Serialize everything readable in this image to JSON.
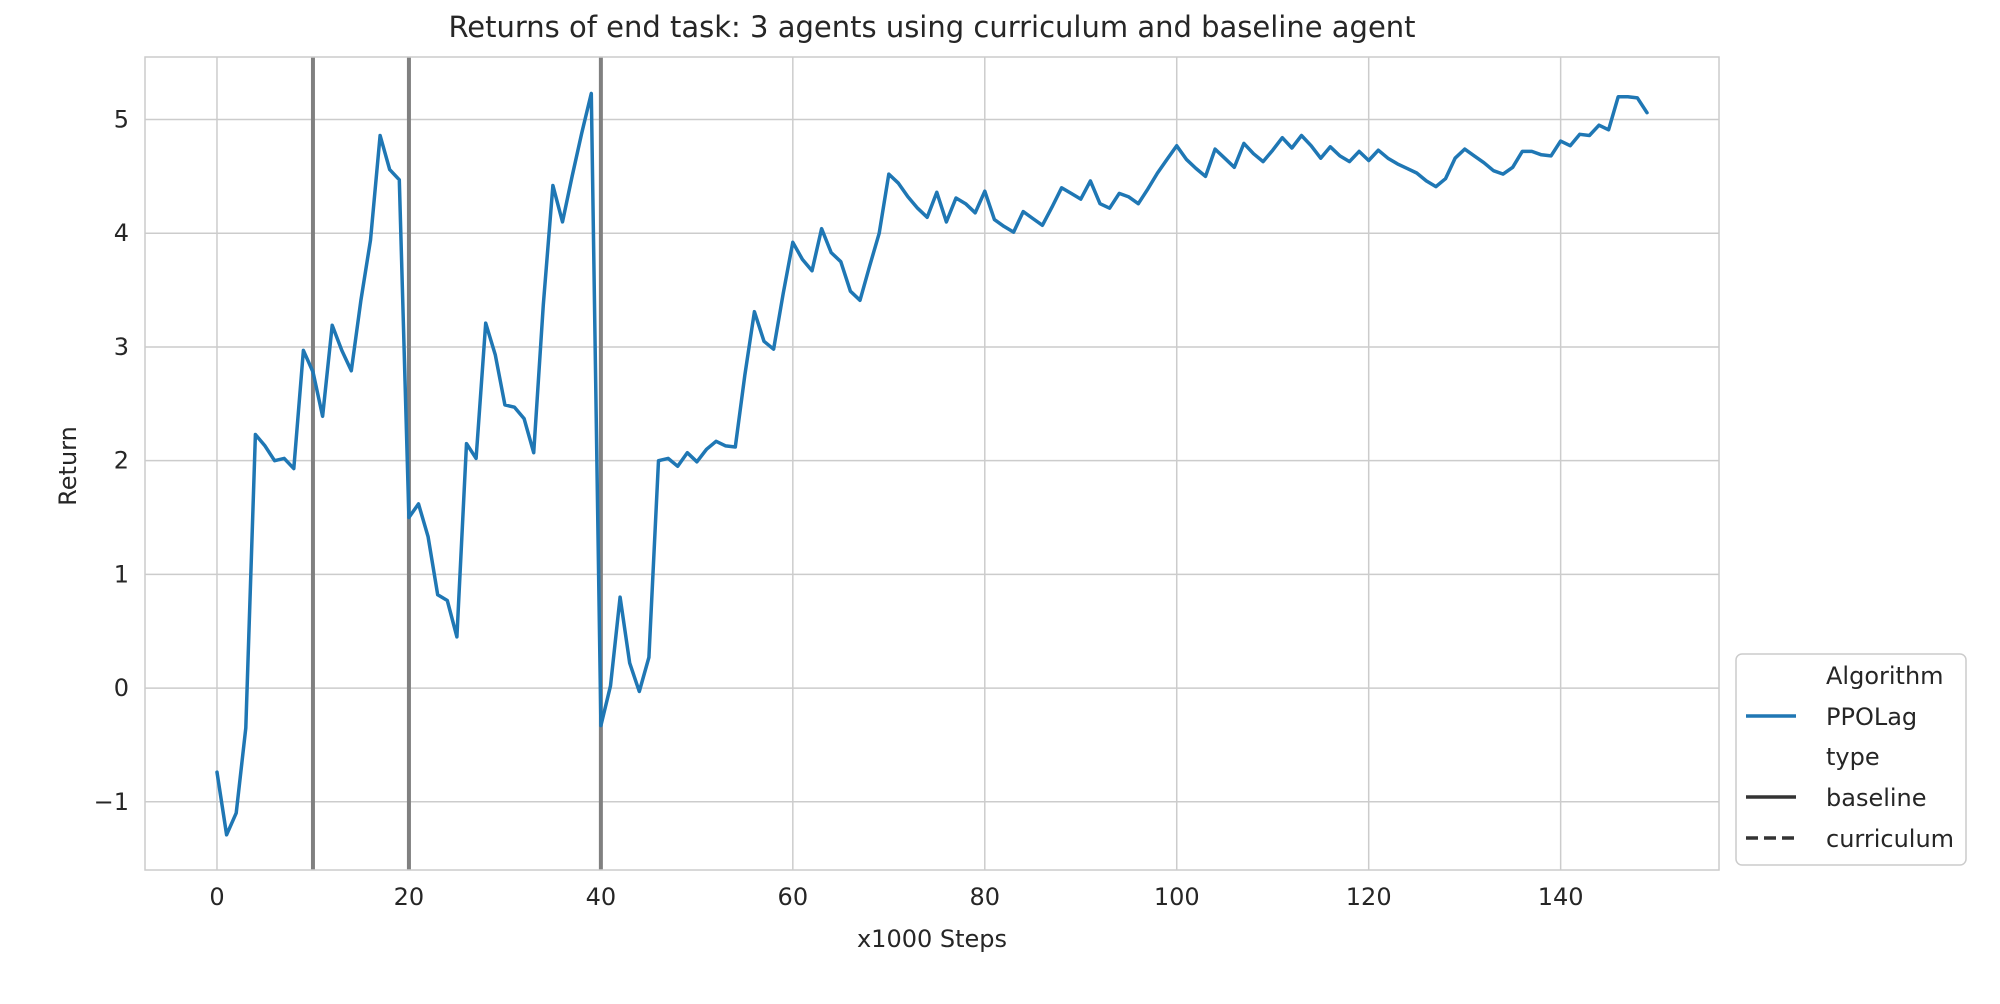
{
  "chart_data": {
    "type": "line",
    "title": "Returns of end task: 3 agents using curriculum and baseline agent",
    "xlabel": "x1000 Steps",
    "ylabel": "Return",
    "xlim": [
      -7.5,
      156.5
    ],
    "ylim": [
      -1.6,
      5.55
    ],
    "xticks": [
      0,
      20,
      40,
      60,
      80,
      100,
      120,
      140
    ],
    "yticks": [
      -1,
      0,
      1,
      2,
      3,
      4,
      5
    ],
    "grid": true,
    "vlines": [
      10,
      20,
      40
    ],
    "legend": {
      "placement": "lower-right-outside",
      "groups": [
        {
          "title": "Algorithm",
          "entries": [
            {
              "label": "PPOLag",
              "color": "#1f77b4",
              "dash": "solid"
            }
          ]
        },
        {
          "title": "type",
          "entries": [
            {
              "label": "baseline",
              "color": "#333333",
              "dash": "solid"
            },
            {
              "label": "curriculum",
              "color": "#333333",
              "dash": "dashed"
            }
          ]
        }
      ]
    },
    "series": [
      {
        "name": "PPOLag",
        "type": "baseline",
        "color": "#1f77b4",
        "x": [
          0,
          1,
          2,
          3,
          4,
          5,
          6,
          7,
          8,
          9,
          10,
          11,
          12,
          13,
          14,
          15,
          16,
          17,
          18,
          19,
          20,
          21,
          22,
          23,
          24,
          25,
          26,
          27,
          28,
          29,
          30,
          31,
          32,
          33,
          34,
          35,
          36,
          37,
          38,
          39,
          40,
          41,
          42,
          43,
          44,
          45,
          46,
          47,
          48,
          49,
          50,
          51,
          52,
          53,
          54,
          55,
          56,
          57,
          58,
          59,
          60,
          61,
          62,
          63,
          64,
          65,
          66,
          67,
          68,
          69,
          70,
          71,
          72,
          73,
          74,
          75,
          76,
          77,
          78,
          79,
          80,
          81,
          82,
          83,
          84,
          85,
          86,
          87,
          88,
          89,
          90,
          91,
          92,
          93,
          94,
          95,
          96,
          97,
          98,
          99,
          100,
          101,
          102,
          103,
          104,
          105,
          106,
          107,
          108,
          109,
          110,
          111,
          112,
          113,
          114,
          115,
          116,
          117,
          118,
          119,
          120,
          121,
          122,
          123,
          124,
          125,
          126,
          127,
          128,
          129,
          130,
          131,
          132,
          133,
          134,
          135,
          136,
          137,
          138,
          139,
          140,
          141,
          142,
          143,
          144,
          145,
          146,
          147,
          148,
          149
        ],
        "y": [
          -0.74,
          -1.29,
          -1.1,
          -0.35,
          2.23,
          2.13,
          2.0,
          2.02,
          1.93,
          2.97,
          2.78,
          2.39,
          3.19,
          2.97,
          2.79,
          3.41,
          3.94,
          4.86,
          4.56,
          4.47,
          1.5,
          1.62,
          1.33,
          0.82,
          0.77,
          0.45,
          2.15,
          2.02,
          3.21,
          2.93,
          2.49,
          2.47,
          2.37,
          2.07,
          3.37,
          4.42,
          4.1,
          4.5,
          4.88,
          5.23,
          -0.33,
          0.02,
          0.8,
          0.22,
          -0.03,
          0.27,
          2.0,
          2.02,
          1.95,
          2.07,
          1.99,
          2.1,
          2.17,
          2.13,
          2.12,
          2.75,
          3.31,
          3.05,
          2.98,
          3.47,
          3.92,
          3.77,
          3.67,
          4.04,
          3.83,
          3.75,
          3.49,
          3.41,
          3.71,
          4.0,
          4.52,
          4.44,
          4.32,
          4.22,
          4.14,
          4.36,
          4.1,
          4.31,
          4.26,
          4.18,
          4.37,
          4.12,
          4.06,
          4.01,
          4.19,
          4.13,
          4.07,
          4.23,
          4.4,
          4.35,
          4.3,
          4.46,
          4.26,
          4.22,
          4.35,
          4.32,
          4.26,
          4.39,
          4.53,
          4.65,
          4.77,
          4.65,
          4.57,
          4.5,
          4.74,
          4.66,
          4.58,
          4.79,
          4.7,
          4.63,
          4.73,
          4.84,
          4.75,
          4.86,
          4.77,
          4.66,
          4.76,
          4.68,
          4.63,
          4.72,
          4.64,
          4.73,
          4.66,
          4.61,
          4.57,
          4.53,
          4.46,
          4.41,
          4.48,
          4.66,
          4.74,
          4.68,
          4.62,
          4.55,
          4.52,
          4.58,
          4.72,
          4.72,
          4.69,
          4.68,
          4.81,
          4.77,
          4.87,
          4.86,
          4.95,
          4.91,
          5.2,
          5.2,
          5.19,
          5.06
        ]
      }
    ]
  }
}
